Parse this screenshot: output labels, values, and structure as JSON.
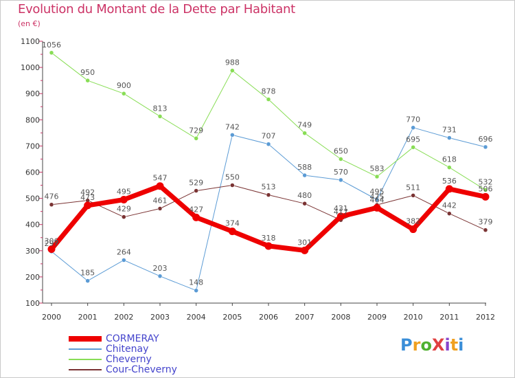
{
  "title": "Evolution du Montant de la Dette par Habitant",
  "subtitle": "(en €)",
  "logo": {
    "text": "ProXiti",
    "colors": [
      "#3a8ed8",
      "#f0a020",
      "#50b030",
      "#e04040",
      "#8844cc",
      "#f0a020",
      "#3a8ed8"
    ]
  },
  "chart_data": {
    "type": "line",
    "x": [
      "2000",
      "2001",
      "2002",
      "2003",
      "2004",
      "2005",
      "2006",
      "2007",
      "2008",
      "2009",
      "2010",
      "2011",
      "2012"
    ],
    "ylim": [
      100,
      1100
    ],
    "yticks": [
      100,
      200,
      300,
      400,
      500,
      600,
      700,
      800,
      900,
      1000,
      1100
    ],
    "grid": false,
    "legend_position": "bottom-left",
    "series": [
      {
        "name": "CORMERAY",
        "color": "#ee0000",
        "width": 7,
        "values": [
          306,
          473,
          495,
          547,
          427,
          374,
          318,
          301,
          431,
          464,
          382,
          536,
          506
        ]
      },
      {
        "name": "Chitenay",
        "color": "#5b9bd5",
        "width": 1,
        "values": [
          297,
          185,
          264,
          203,
          148,
          742,
          707,
          588,
          570,
          495,
          770,
          731,
          696
        ]
      },
      {
        "name": "Cheverny",
        "color": "#88dd55",
        "width": 1,
        "values": [
          1056,
          950,
          900,
          813,
          729,
          988,
          878,
          749,
          650,
          583,
          695,
          618,
          532
        ]
      },
      {
        "name": "Cour-Cheverny",
        "color": "#7a3333",
        "width": 1,
        "values": [
          476,
          492,
          429,
          461,
          529,
          550,
          513,
          480,
          417,
          475,
          511,
          442,
          379
        ]
      }
    ]
  }
}
